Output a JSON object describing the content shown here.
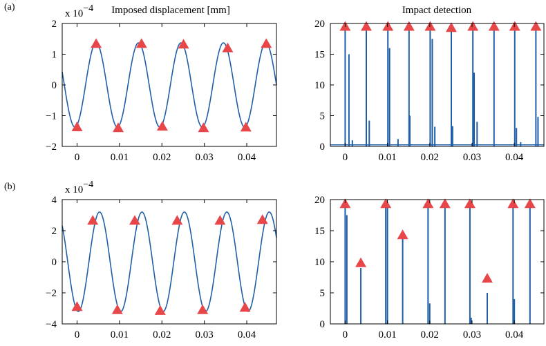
{
  "colors": {
    "trace": "#1f5fa8",
    "marker": "#e8474a",
    "axis": "#000000"
  },
  "panel_labels": {
    "a": "(a)",
    "b": "(b)"
  },
  "chart_data": [
    {
      "id": "a-left",
      "type": "line",
      "title": "Imposed displacement [mm]",
      "multiplier": {
        "base": "x 10",
        "exponent": "−4"
      },
      "xlim": [
        -0.0035,
        0.047
      ],
      "ylim": [
        -2,
        2
      ],
      "xticks": [
        0,
        0.01,
        0.02,
        0.03,
        0.04
      ],
      "xtick_labels": [
        "0",
        "0.01",
        "0.02",
        "0.03",
        "0.04"
      ],
      "yticks": [
        -2,
        -1,
        0,
        1,
        2
      ],
      "ytick_labels": [
        "−2",
        "−1",
        "0",
        "1",
        "2"
      ],
      "series": [
        {
          "kind": "sine",
          "amplitude": 1.37,
          "frequency": 100,
          "peak_at": 0.0045,
          "x_range": [
            -0.0035,
            0.047
          ]
        }
      ],
      "markers": {
        "x": [
          0,
          0.0045,
          0.0097,
          0.0152,
          0.0201,
          0.0251,
          0.0298,
          0.0355,
          0.0398,
          0.0446
        ],
        "y": [
          -1.37,
          1.34,
          -1.4,
          1.34,
          -1.35,
          1.32,
          -1.4,
          1.2,
          -1.38,
          1.34
        ]
      }
    },
    {
      "id": "a-right",
      "type": "line",
      "title": "Impact detection",
      "xlim": [
        -0.0035,
        0.047
      ],
      "ylim": [
        0,
        20
      ],
      "xticks": [
        0,
        0.01,
        0.02,
        0.03,
        0.04
      ],
      "xtick_labels": [
        "0",
        "0.01",
        "0.02",
        "0.03",
        "0.04"
      ],
      "yticks": [
        0,
        5,
        10,
        15,
        20
      ],
      "ytick_labels": [
        "0",
        "5",
        "10",
        "15",
        "20"
      ],
      "spikes": [
        {
          "x": 0,
          "y": 20
        },
        {
          "x": 0.0009,
          "y": 15
        },
        {
          "x": 0.0017,
          "y": 1
        },
        {
          "x": 0.005,
          "y": 20
        },
        {
          "x": 0.0057,
          "y": 4.2
        },
        {
          "x": 0.0101,
          "y": 20
        },
        {
          "x": 0.0105,
          "y": 16
        },
        {
          "x": 0.0125,
          "y": 1.2
        },
        {
          "x": 0.0151,
          "y": 20
        },
        {
          "x": 0.0153,
          "y": 5
        },
        {
          "x": 0.0201,
          "y": 20
        },
        {
          "x": 0.0206,
          "y": 17.5
        },
        {
          "x": 0.0212,
          "y": 3.2
        },
        {
          "x": 0.0251,
          "y": 20
        },
        {
          "x": 0.0254,
          "y": 3.3
        },
        {
          "x": 0.0302,
          "y": 20
        },
        {
          "x": 0.0305,
          "y": 12
        },
        {
          "x": 0.0312,
          "y": 4
        },
        {
          "x": 0.0352,
          "y": 20
        },
        {
          "x": 0.0401,
          "y": 20
        },
        {
          "x": 0.0405,
          "y": 3
        },
        {
          "x": 0.0415,
          "y": 0.7
        },
        {
          "x": 0.0451,
          "y": 20
        },
        {
          "x": 0.0456,
          "y": 4.8
        }
      ],
      "baseline": 0.25,
      "markers": {
        "x": [
          0,
          0.005,
          0.0101,
          0.0151,
          0.0201,
          0.0251,
          0.0302,
          0.0352,
          0.0401,
          0.0451
        ],
        "y": [
          19.5,
          19.5,
          19.5,
          19.5,
          19.5,
          19.3,
          19.5,
          19.5,
          19.5,
          19.5
        ]
      }
    },
    {
      "id": "b-left",
      "type": "line",
      "multiplier": {
        "base": "x 10",
        "exponent": "−4"
      },
      "xlim": [
        -0.0035,
        0.047
      ],
      "ylim": [
        -4,
        4
      ],
      "xticks": [
        0,
        0.01,
        0.02,
        0.03,
        0.04
      ],
      "xtick_labels": [
        "0",
        "0.01",
        "0.02",
        "0.03",
        "0.04"
      ],
      "yticks": [
        -4,
        -2,
        0,
        2,
        4
      ],
      "ytick_labels": [
        "−4",
        "−2",
        "0",
        "2",
        "4"
      ],
      "series": [
        {
          "kind": "sine",
          "amplitude": 3.2,
          "frequency": 100,
          "peak_at": 0.0053,
          "x_range": [
            -0.0035,
            0.047
          ]
        }
      ],
      "markers": {
        "x": [
          0,
          0.0037,
          0.0095,
          0.0136,
          0.0196,
          0.0236,
          0.0296,
          0.0337,
          0.0396,
          0.0437
        ],
        "y": [
          -2.9,
          2.65,
          -3.1,
          2.65,
          -3.15,
          2.65,
          -3.1,
          2.65,
          -2.95,
          2.7
        ]
      }
    },
    {
      "id": "b-right",
      "type": "line",
      "xlim": [
        -0.0035,
        0.047
      ],
      "ylim": [
        0,
        20
      ],
      "xticks": [
        0,
        0.01,
        0.02,
        0.03,
        0.04
      ],
      "xtick_labels": [
        "0",
        "0.01",
        "0.02",
        "0.03",
        "0.04"
      ],
      "yticks": [
        0,
        5,
        10,
        15,
        20
      ],
      "ytick_labels": [
        "0",
        "5",
        "10",
        "15",
        "20"
      ],
      "spikes": [
        {
          "x": 0,
          "y": 20
        },
        {
          "x": 0.0004,
          "y": 17.5
        },
        {
          "x": 0.0037,
          "y": 9
        },
        {
          "x": 0.0096,
          "y": 20
        },
        {
          "x": 0.01,
          "y": 19
        },
        {
          "x": 0.0136,
          "y": 14
        },
        {
          "x": 0.0196,
          "y": 20
        },
        {
          "x": 0.02,
          "y": 3.3
        },
        {
          "x": 0.0236,
          "y": 20
        },
        {
          "x": 0.0295,
          "y": 20
        },
        {
          "x": 0.0298,
          "y": 1
        },
        {
          "x": 0.0336,
          "y": 5
        },
        {
          "x": 0.0397,
          "y": 20
        },
        {
          "x": 0.04,
          "y": 4
        },
        {
          "x": 0.0437,
          "y": 20
        }
      ],
      "baseline": 0,
      "markers": {
        "x": [
          0,
          0.0037,
          0.0096,
          0.0136,
          0.0196,
          0.0236,
          0.0295,
          0.0336,
          0.0397,
          0.0437
        ],
        "y": [
          19.3,
          9.8,
          19.3,
          14.3,
          19.3,
          19.3,
          19.3,
          7.3,
          19.3,
          19.3
        ]
      }
    }
  ]
}
